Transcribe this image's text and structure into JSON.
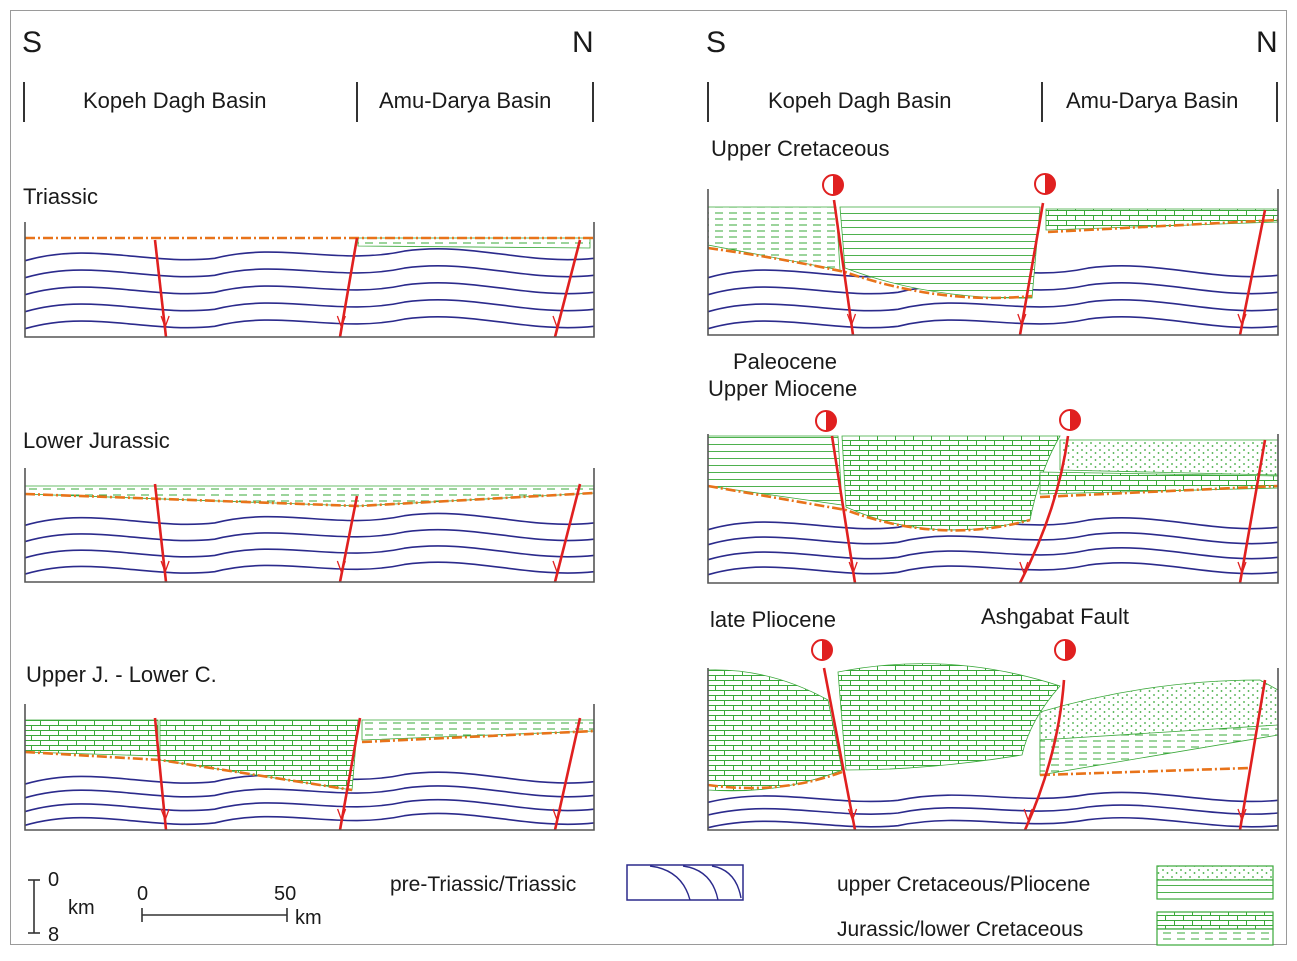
{
  "directions": {
    "left_south": "S",
    "left_north": "N",
    "right_south": "S",
    "right_north": "N"
  },
  "basins": {
    "left_kopeh": "Kopeh Dagh Basin",
    "left_amu": "Amu-Darya Basin",
    "right_kopeh": "Kopeh Dagh Basin",
    "right_amu": "Amu-Darya Basin"
  },
  "stages": {
    "triassic": "Triassic",
    "lower_jurassic": "Lower Jurassic",
    "upper_j_lower_c": "Upper J. - Lower C.",
    "upper_cretaceous": "Upper Cretaceous",
    "paleocene": "Paleocene",
    "upper_miocene": "Upper Miocene",
    "late_pliocene": "late Pliocene",
    "ashgabat_fault": "Ashgabat Fault"
  },
  "scale": {
    "depth_top": "0",
    "depth_bottom": "8",
    "depth_unit": "km",
    "dist_start": "0",
    "dist_end": "50",
    "dist_unit": "km"
  },
  "legend": {
    "pre_triassic": "pre-Triassic/Triassic",
    "upper_cret_pliocene": "upper Cretaceous/Pliocene",
    "jurassic_lower_cret": "Jurassic/lower Cretaceous"
  },
  "colors": {
    "basement": "#2b2a8c",
    "fault": "#e02020",
    "unconformity": "#e8731a",
    "sediment": "#3aa83a",
    "frame": "#555555"
  }
}
